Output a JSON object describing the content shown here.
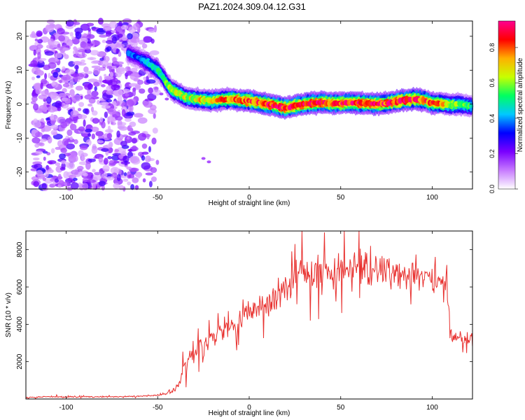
{
  "title": "PAZ1.2024.309.04.12.G31",
  "chart_data": [
    {
      "type": "heatmap",
      "xlabel": "Height of straight line (km)",
      "ylabel": "Frequency (Hz)",
      "xlim": [
        -122,
        122
      ],
      "ylim": [
        -25,
        24.5
      ],
      "xticks": [
        -100,
        -50,
        0,
        50,
        100
      ],
      "yticks": [
        -20,
        -10,
        0,
        10,
        20
      ],
      "colorbar": {
        "label": "Normalized spectral amplitude",
        "range": [
          0,
          0.95
        ],
        "ticks": [
          0.0,
          0.2,
          0.4,
          0.6,
          0.8
        ],
        "colormap": [
          "#ffffff",
          "#c77bff",
          "#7a00ff",
          "#0000ff",
          "#00c8ff",
          "#00ff60",
          "#c8ff00",
          "#ffb000",
          "#ff0000",
          "#ff0090"
        ]
      },
      "ridge": {
        "description_points_x": [
          -66,
          -60,
          -55,
          -50,
          -47,
          -45,
          -42,
          -38,
          -35,
          -30,
          -25,
          -20,
          -15,
          -10,
          -5,
          0,
          5,
          10,
          15,
          20,
          25,
          30,
          35,
          40,
          45,
          50,
          55,
          60,
          65,
          70,
          75,
          80,
          85,
          90,
          95,
          100,
          105,
          110,
          115,
          120,
          122
        ],
        "frequency_hz": [
          15,
          13.5,
          12,
          10,
          8,
          6,
          4,
          3,
          2,
          1.5,
          1.2,
          1,
          1.3,
          1.5,
          1.2,
          1,
          0.5,
          0,
          -0.5,
          -1.2,
          -0.5,
          0,
          0.3,
          0.5,
          0.2,
          0.3,
          0.5,
          0.3,
          0.2,
          0.1,
          0.3,
          0.8,
          1.2,
          1.5,
          1.2,
          0.3,
          0.2,
          -0.2,
          0,
          -0.5,
          -0.5
        ],
        "peak_amplitude": [
          0.35,
          0.35,
          0.45,
          0.5,
          0.5,
          0.55,
          0.6,
          0.6,
          0.65,
          0.65,
          0.7,
          0.7,
          0.75,
          0.75,
          0.8,
          0.8,
          0.8,
          0.85,
          0.85,
          0.9,
          0.85,
          0.85,
          0.85,
          0.85,
          0.85,
          0.85,
          0.85,
          0.85,
          0.85,
          0.9,
          0.85,
          0.85,
          0.9,
          0.85,
          0.8,
          0.8,
          0.75,
          0.65,
          0.6,
          0.55,
          0.5
        ]
      },
      "noise_region_x": [
        -118,
        -50
      ]
    },
    {
      "type": "line",
      "xlabel": "Height of straight line (km)",
      "ylabel": "SNR (10 * v/v)",
      "xlim": [
        -122,
        122
      ],
      "ylim": [
        0,
        9000
      ],
      "xticks": [
        -100,
        -50,
        0,
        50,
        100
      ],
      "yticks": [
        2000,
        4000,
        6000,
        8000
      ],
      "color": "#e8312f",
      "series": [
        {
          "x": [
            -122,
            -110,
            -100,
            -90,
            -80,
            -70,
            -60,
            -50,
            -45,
            -42,
            -40,
            -38,
            -35,
            -30,
            -27,
            -25,
            -20,
            -15,
            -10,
            -5,
            0,
            5,
            10,
            15,
            18,
            20,
            25,
            30,
            35,
            40,
            45,
            50,
            55,
            60,
            65,
            70,
            75,
            80,
            85,
            90,
            95,
            100,
            105,
            108,
            110,
            112,
            115,
            120,
            122
          ],
          "values": [
            80,
            120,
            110,
            120,
            110,
            130,
            150,
            200,
            300,
            400,
            600,
            900,
            1900,
            2500,
            3100,
            2400,
            3300,
            3600,
            3900,
            4200,
            4600,
            5000,
            5100,
            5400,
            5800,
            6100,
            6500,
            6600,
            6700,
            6900,
            7000,
            7000,
            6900,
            7000,
            7000,
            6900,
            6800,
            6700,
            6600,
            6600,
            6500,
            6400,
            6300,
            6300,
            3600,
            3300,
            3300,
            3200,
            3200
          ],
          "spread": [
            40,
            40,
            40,
            40,
            40,
            40,
            40,
            60,
            80,
            100,
            200,
            300,
            600,
            700,
            700,
            700,
            700,
            700,
            700,
            700,
            700,
            700,
            800,
            900,
            900,
            900,
            1000,
            1000,
            1000,
            1100,
            1100,
            1100,
            1100,
            1100,
            1100,
            1000,
            1000,
            900,
            900,
            800,
            800,
            700,
            700,
            700,
            400,
            400,
            400,
            400,
            400
          ]
        }
      ]
    }
  ]
}
